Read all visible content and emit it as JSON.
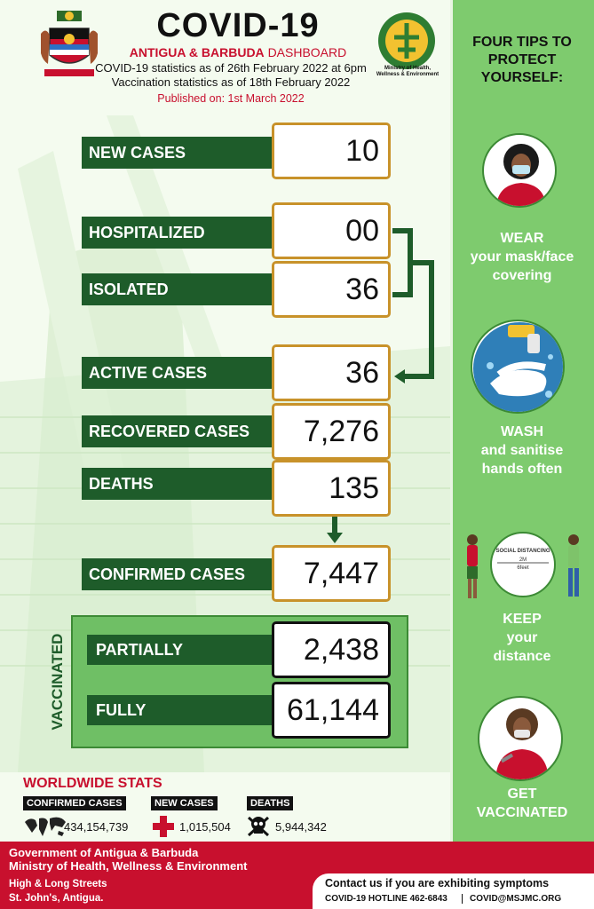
{
  "header": {
    "title": "COVID-19",
    "subtitle_bold": "ANTIGUA & BARBUDA",
    "subtitle_rest": "DASHBOARD",
    "line1": "COVID-19 statistics as of 26th February 2022 at 6pm",
    "line2": "Vaccination statistics as of 18th February 2022",
    "published": "Published on: 1st March 2022",
    "ministry_logo_text_1": "Ministry of Health,",
    "ministry_logo_text_2": "Wellness & Environment"
  },
  "stats": {
    "new_cases": {
      "label": "NEW CASES",
      "value": "10"
    },
    "hospitalized": {
      "label": "HOSPITALIZED",
      "value": "00"
    },
    "isolated": {
      "label": "ISOLATED",
      "value": "36"
    },
    "active_cases": {
      "label": "ACTIVE CASES",
      "value": "36"
    },
    "recovered": {
      "label": "RECOVERED CASES",
      "value": "7,276"
    },
    "deaths": {
      "label": "DEATHS",
      "value": "135"
    },
    "confirmed": {
      "label": "CONFIRMED CASES",
      "value": "7,447"
    }
  },
  "vaccinated": {
    "heading": "VACCINATED",
    "partially": {
      "label": "PARTIALLY",
      "value": "2,438"
    },
    "fully": {
      "label": "FULLY",
      "value": "61,144"
    }
  },
  "worldwide": {
    "title": "WORLDWIDE STATS",
    "confirmed": {
      "label": "CONFIRMED CASES",
      "value": "434,154,739",
      "icon": "world-map-icon"
    },
    "new_cases": {
      "label": "NEW CASES",
      "value": "1,015,504",
      "icon": "red-cross-icon"
    },
    "deaths": {
      "label": "DEATHS",
      "value": "5,944,342",
      "icon": "skull-icon"
    }
  },
  "footer": {
    "gov_line1": "Government of Antigua & Barbuda",
    "gov_line2": "Ministry of Health, Wellness & Environment",
    "addr_line1": "High & Long Streets",
    "addr_line2": "St. John's, Antigua.",
    "contact_title": "Contact us if you are exhibiting symptoms",
    "hotline": "COVID-19 HOTLINE 462-6843",
    "email": "COVID@MSJMC.ORG"
  },
  "tips": {
    "title_1": "FOUR TIPS TO",
    "title_2": "PROTECT",
    "title_3": "YOURSELF:",
    "items": [
      {
        "line1": "WEAR",
        "line2": "your mask/face",
        "line3": "covering",
        "icon": "mask-person-icon"
      },
      {
        "line1": "WASH",
        "line2": "and sanitise",
        "line3": "hands often",
        "icon": "handwash-icon"
      },
      {
        "line1": "KEEP",
        "line2": "your",
        "line3": "distance",
        "icon": "social-distancing-icon"
      },
      {
        "line1": "GET",
        "line2": "VACCINATED",
        "line3": "",
        "icon": "vaccination-icon"
      }
    ],
    "distancing_label": "SOCIAL DISTANCING",
    "distancing_m": "2M",
    "distancing_ft": "6feet"
  },
  "colors": {
    "dark_green": "#1e5c2a",
    "gold_border": "#c8922a",
    "red": "#c8102e",
    "panel_green": "#7ecb6e"
  }
}
